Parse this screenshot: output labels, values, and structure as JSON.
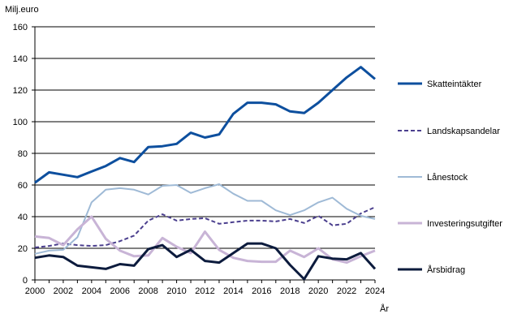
{
  "chart_data": {
    "type": "line",
    "ylabel": "Milj.euro",
    "xlabel": "År",
    "x": [
      2000,
      2001,
      2002,
      2003,
      2004,
      2005,
      2006,
      2007,
      2008,
      2009,
      2010,
      2011,
      2012,
      2013,
      2014,
      2015,
      2016,
      2017,
      2018,
      2019,
      2020,
      2021,
      2022,
      2023,
      2024
    ],
    "xticks": [
      "2000",
      "2002",
      "2004",
      "2006",
      "2008",
      "2010",
      "2012",
      "2014",
      "2016",
      "2018",
      "2020",
      "2022",
      "2024"
    ],
    "xlim": [
      2000,
      2024
    ],
    "ylim": [
      0,
      160
    ],
    "yticks": [
      0,
      20,
      40,
      60,
      80,
      100,
      120,
      140,
      160
    ],
    "grid": "horizontal",
    "legend_position": "right",
    "series": [
      {
        "name": "Skatteintäkter",
        "color": "#0d4f9e",
        "style": "solid",
        "width": 3,
        "values": [
          61.5,
          68,
          66.5,
          65,
          68.5,
          72,
          77,
          74.5,
          84,
          84.5,
          86,
          93,
          90,
          92,
          105,
          112,
          112,
          111,
          106.5,
          105.5,
          112,
          120,
          128,
          134.5,
          127
        ]
      },
      {
        "name": "Landskapsandelar",
        "color": "#4b3f8e",
        "style": "dashed",
        "width": 2,
        "values": [
          20.5,
          21.5,
          23,
          22,
          21.5,
          22,
          24.5,
          28,
          37.5,
          41.5,
          37.5,
          38.5,
          39,
          35.5,
          36.5,
          37.5,
          37.5,
          37,
          38.5,
          36,
          40.5,
          34.5,
          35.5,
          42,
          46
        ]
      },
      {
        "name": "Lånestock",
        "color": "#9fbad6",
        "style": "solid",
        "width": 2,
        "values": [
          16.5,
          18.5,
          19,
          27,
          49,
          57,
          58,
          57,
          54,
          59.5,
          60,
          55,
          58,
          60.5,
          54.5,
          50,
          50,
          44,
          41,
          44,
          49,
          52,
          45,
          40.5,
          38.5
        ]
      },
      {
        "name": "Investeringsutgifter",
        "color": "#c8b4d6",
        "style": "solid",
        "width": 3,
        "values": [
          27.5,
          26.5,
          22,
          32,
          40,
          26,
          18.5,
          15,
          15.5,
          26.5,
          21,
          17,
          30.5,
          19,
          14,
          12,
          11.5,
          11.5,
          18.5,
          14.5,
          20,
          13,
          11,
          15,
          18.5
        ]
      },
      {
        "name": "Årsbidrag",
        "color": "#0c1b3d",
        "style": "solid",
        "width": 3,
        "values": [
          14,
          15.5,
          14.5,
          9,
          8,
          7,
          10,
          9,
          19.5,
          22,
          14.5,
          19,
          12,
          11,
          17,
          23,
          23,
          20,
          9.5,
          0.5,
          15,
          13.5,
          13,
          17,
          7
        ]
      }
    ]
  }
}
